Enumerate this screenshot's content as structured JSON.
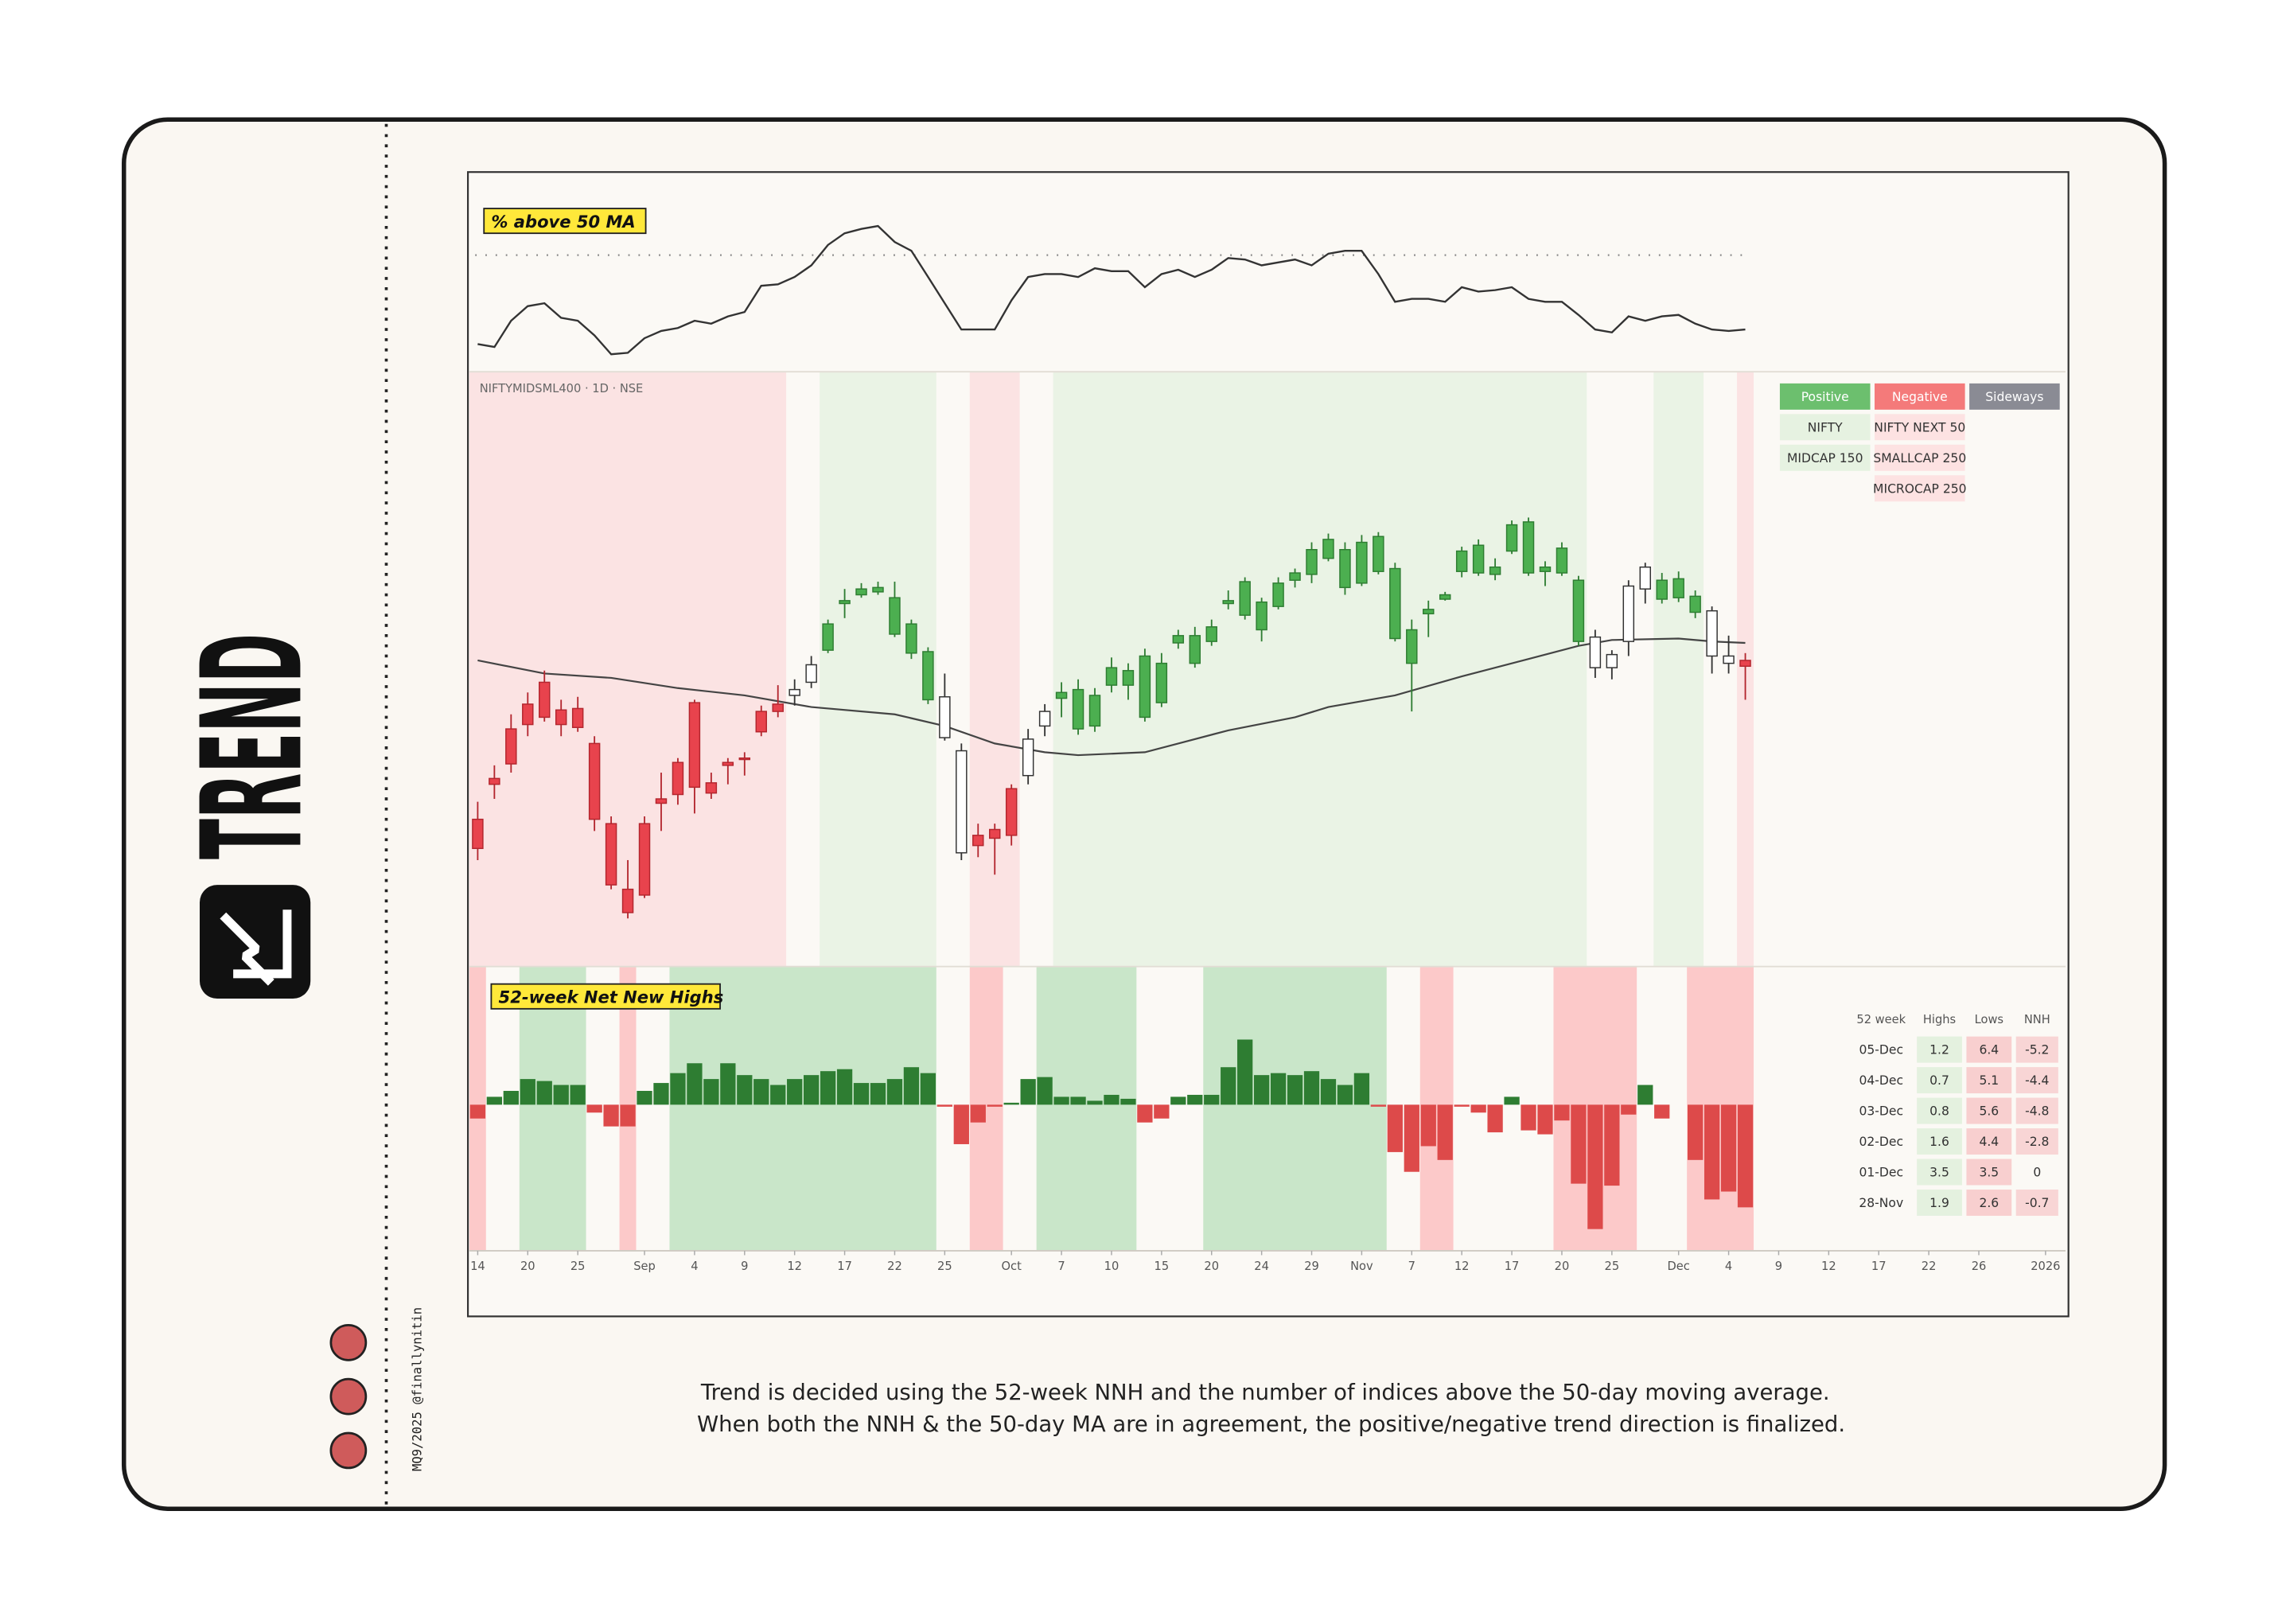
{
  "sidebar": {
    "title": "TREND",
    "credit": "MQ9/2025 @finallynitin"
  },
  "caption": [
    "Trend is decided using the 52-week NNH and the number of indices above the 50-day moving average.",
    "When both the NNH & the 50-day MA are in agreement, the positive/negative trend direction is finalized."
  ],
  "chart_data": [
    {
      "type": "line",
      "title": "% above 50 MA",
      "color": "#333333",
      "xlim": [
        -0.5,
        95.2
      ],
      "ylim": [
        0,
        137
      ],
      "reference_line": 80,
      "values": [
        19,
        17,
        35,
        45,
        47,
        37,
        35,
        25,
        12,
        13,
        23,
        28,
        30,
        35,
        33,
        38,
        41,
        59,
        60,
        65,
        73,
        87,
        95,
        98,
        100,
        89,
        83,
        65,
        47,
        29,
        29,
        29,
        49,
        65,
        67,
        67,
        65,
        71,
        69,
        69,
        58,
        67,
        70,
        65,
        70,
        78,
        77,
        73,
        75,
        77,
        73,
        81,
        83,
        83,
        67,
        48,
        50,
        50,
        48,
        58,
        55,
        56,
        58,
        50,
        48,
        48,
        39,
        29,
        27,
        38,
        35,
        38,
        39,
        33,
        29,
        28,
        29
      ]
    },
    {
      "type": "candlestick",
      "title": "NIFTYMIDSML400 · 1D · NSE",
      "xlim": [
        -0.5,
        95.2
      ],
      "ylim": [
        0,
        408
      ],
      "open": [
        81,
        125,
        139,
        166,
        171,
        166,
        164,
        101,
        56,
        37,
        49,
        112,
        118,
        123,
        119,
        138,
        142,
        161,
        175,
        186,
        195,
        217,
        249,
        255,
        257,
        228,
        215,
        183,
        157,
        78,
        83,
        88,
        90,
        131,
        165,
        184,
        163,
        165,
        193,
        193,
        171,
        181,
        222,
        208,
        223,
        249,
        241,
        231,
        247,
        265,
        269,
        280,
        260,
        263,
        271,
        225,
        208,
        242,
        252,
        271,
        270,
        269,
        285,
        270,
        271,
        270,
        223,
        205,
        205,
        223,
        259,
        252,
        253,
        243,
        213,
        208,
        206
      ],
      "high": [
        113,
        138,
        173,
        188,
        203,
        183,
        185,
        158,
        103,
        73,
        103,
        133,
        143,
        183,
        133,
        143,
        147,
        179,
        193,
        197,
        213,
        238,
        259,
        263,
        264,
        264,
        238,
        219,
        201,
        153,
        98,
        98,
        125,
        163,
        180,
        195,
        197,
        191,
        212,
        208,
        218,
        215,
        231,
        233,
        238,
        258,
        267,
        253,
        267,
        273,
        291,
        297,
        291,
        296,
        298,
        277,
        238,
        251,
        257,
        288,
        293,
        280,
        306,
        308,
        278,
        291,
        268,
        231,
        217,
        265,
        277,
        270,
        271,
        258,
        247,
        227,
        215
      ],
      "low": [
        73,
        115,
        133,
        158,
        168,
        158,
        161,
        93,
        53,
        33,
        47,
        93,
        111,
        105,
        115,
        125,
        131,
        158,
        171,
        179,
        191,
        215,
        239,
        253,
        255,
        226,
        211,
        180,
        155,
        73,
        75,
        63,
        83,
        125,
        158,
        171,
        159,
        161,
        188,
        183,
        168,
        178,
        218,
        205,
        220,
        245,
        238,
        223,
        245,
        260,
        263,
        278,
        255,
        261,
        269,
        223,
        175,
        226,
        251,
        267,
        268,
        265,
        283,
        268,
        261,
        268,
        220,
        198,
        197,
        213,
        249,
        249,
        250,
        239,
        201,
        201,
        183
      ],
      "close": [
        101,
        129,
        163,
        180,
        195,
        176,
        177,
        153,
        98,
        53,
        98,
        115,
        140,
        181,
        126,
        140,
        143,
        175,
        180,
        190,
        207,
        235,
        251,
        259,
        260,
        253,
        235,
        216,
        185,
        148,
        90,
        94,
        122,
        156,
        175,
        188,
        190,
        186,
        205,
        203,
        213,
        208,
        227,
        227,
        233,
        251,
        264,
        250,
        263,
        270,
        286,
        293,
        286,
        291,
        295,
        273,
        231,
        245,
        255,
        285,
        289,
        274,
        303,
        305,
        274,
        287,
        265,
        226,
        214,
        261,
        274,
        265,
        266,
        254,
        244,
        213,
        210
      ],
      "ma": {
        "color": "#444444",
        "x": [
          0,
          4,
          8,
          12,
          16,
          20,
          25,
          28,
          31,
          34,
          36,
          40,
          42,
          45,
          49,
          51,
          55,
          59,
          63,
          66,
          68,
          72,
          74,
          76
        ],
        "values": [
          210,
          201,
          198,
          191,
          186,
          178,
          173,
          165,
          153,
          147,
          145,
          147,
          153,
          162,
          171,
          178,
          186,
          199,
          211,
          220,
          224,
          225,
          223,
          222
        ]
      },
      "regions": [
        {
          "from": 0,
          "to": 18,
          "trend": "negative"
        },
        {
          "from": 19,
          "to": 20,
          "trend": "neutral"
        },
        {
          "from": 21,
          "to": 27,
          "trend": "positive"
        },
        {
          "from": 28,
          "to": 29,
          "trend": "neutral"
        },
        {
          "from": 30,
          "to": 32,
          "trend": "negative"
        },
        {
          "from": 33,
          "to": 34,
          "trend": "neutral"
        },
        {
          "from": 35,
          "to": 66,
          "trend": "positive"
        },
        {
          "from": 67,
          "to": 70,
          "trend": "neutral"
        },
        {
          "from": 71,
          "to": 73,
          "trend": "positive"
        },
        {
          "from": 74,
          "to": 75,
          "trend": "neutral"
        },
        {
          "from": 76,
          "to": 76,
          "trend": "negative"
        }
      ],
      "region_colors": {
        "positive": "#eaf3e5",
        "negative": "#fbe3e3",
        "neutral": "#fbf9f5"
      },
      "candle_fill": {
        "positive": "#4caf50",
        "negative": "#e8434d",
        "neutral": "#ffffff"
      },
      "candle_stroke": {
        "positive": "#2e7d32",
        "negative": "#b3262e",
        "neutral": "#333333"
      }
    },
    {
      "type": "bar",
      "title": "52-week Net New Highs",
      "xlim": [
        -0.5,
        95.2
      ],
      "ylim": [
        -7.4,
        7.0
      ],
      "values": [
        -0.7,
        0.4,
        0.7,
        1.3,
        1.2,
        1.0,
        1.0,
        -0.4,
        -1.1,
        -1.1,
        0.7,
        1.1,
        1.6,
        2.1,
        1.3,
        2.1,
        1.5,
        1.3,
        1.0,
        1.3,
        1.5,
        1.7,
        1.8,
        1.1,
        1.1,
        1.3,
        1.9,
        1.6,
        -0.1,
        -2.0,
        -0.9,
        -0.1,
        0.1,
        1.3,
        1.4,
        0.4,
        0.4,
        0.2,
        0.5,
        0.3,
        -0.9,
        -0.7,
        0.4,
        0.5,
        0.5,
        1.9,
        3.3,
        1.5,
        1.6,
        1.5,
        1.7,
        1.3,
        1.0,
        1.6,
        -0.1,
        -2.4,
        -3.4,
        -2.1,
        -2.8,
        -0.1,
        -0.4,
        -1.4,
        0.4,
        -1.3,
        -1.5,
        -0.8,
        -4.0,
        -6.3,
        -4.1,
        -0.5,
        1.0,
        -0.7,
        0,
        -2.8,
        -4.8,
        -4.4,
        -5.2
      ],
      "positive_color": "#2e7d32",
      "negative_color": "#dd4a4a",
      "regions": [
        {
          "from": 0,
          "to": 0,
          "trend": "negative"
        },
        {
          "from": 1,
          "to": 2,
          "trend": "neutral"
        },
        {
          "from": 3,
          "to": 6,
          "trend": "positive"
        },
        {
          "from": 7,
          "to": 8,
          "trend": "neutral"
        },
        {
          "from": 9,
          "to": 9,
          "trend": "negative"
        },
        {
          "from": 10,
          "to": 11,
          "trend": "neutral"
        },
        {
          "from": 12,
          "to": 27,
          "trend": "positive"
        },
        {
          "from": 28,
          "to": 29,
          "trend": "neutral"
        },
        {
          "from": 30,
          "to": 31,
          "trend": "negative"
        },
        {
          "from": 32,
          "to": 33,
          "trend": "neutral"
        },
        {
          "from": 34,
          "to": 39,
          "trend": "positive"
        },
        {
          "from": 40,
          "to": 43,
          "trend": "neutral"
        },
        {
          "from": 44,
          "to": 54,
          "trend": "positive"
        },
        {
          "from": 55,
          "to": 56,
          "trend": "neutral"
        },
        {
          "from": 57,
          "to": 58,
          "trend": "negative"
        },
        {
          "from": 59,
          "to": 64,
          "trend": "neutral"
        },
        {
          "from": 65,
          "to": 69,
          "trend": "negative"
        },
        {
          "from": 70,
          "to": 72,
          "trend": "neutral"
        },
        {
          "from": 73,
          "to": 76,
          "trend": "negative"
        }
      ],
      "region_colors": {
        "positive": "#c9e6c9",
        "negative": "#fcc9c9",
        "neutral": "#fbf9f5"
      },
      "xticks": [
        {
          "value": 0,
          "label": "14"
        },
        {
          "value": 3,
          "label": "20"
        },
        {
          "value": 6,
          "label": "25"
        },
        {
          "value": 10,
          "label": "Sep"
        },
        {
          "value": 13,
          "label": "4"
        },
        {
          "value": 16,
          "label": "9"
        },
        {
          "value": 19,
          "label": "12"
        },
        {
          "value": 22,
          "label": "17"
        },
        {
          "value": 25,
          "label": "22"
        },
        {
          "value": 28,
          "label": "25"
        },
        {
          "value": 32,
          "label": "Oct"
        },
        {
          "value": 35,
          "label": "7"
        },
        {
          "value": 38,
          "label": "10"
        },
        {
          "value": 41,
          "label": "15"
        },
        {
          "value": 44,
          "label": "20"
        },
        {
          "value": 47,
          "label": "24"
        },
        {
          "value": 50,
          "label": "29"
        },
        {
          "value": 53,
          "label": "Nov"
        },
        {
          "value": 56,
          "label": "7"
        },
        {
          "value": 59,
          "label": "12"
        },
        {
          "value": 62,
          "label": "17"
        },
        {
          "value": 65,
          "label": "20"
        },
        {
          "value": 68,
          "label": "25"
        },
        {
          "value": 72,
          "label": "Dec"
        },
        {
          "value": 75,
          "label": "4"
        },
        {
          "value": 78,
          "label": "9"
        },
        {
          "value": 81,
          "label": "12"
        },
        {
          "value": 84,
          "label": "17"
        },
        {
          "value": 87,
          "label": "22"
        },
        {
          "value": 90,
          "label": "26"
        },
        {
          "value": 94,
          "label": "2026"
        }
      ]
    }
  ],
  "trend_table": {
    "headers": [
      "Positive",
      "Negative",
      "Sideways"
    ],
    "header_colors": [
      "#6cbf6e",
      "#f47a7a",
      "#8a8b94"
    ],
    "cell_colors": [
      "#e6f2e1",
      "#fde2e2",
      "#ececef"
    ],
    "rows": [
      [
        "NIFTY",
        "NIFTY NEXT 50",
        null
      ],
      [
        "MIDCAP 150",
        "SMALLCAP 250",
        null
      ],
      [
        null,
        "MICROCAP 250",
        null
      ]
    ]
  },
  "nnh_table": {
    "headers": [
      "52 week",
      "Highs",
      "Lows",
      "NNH"
    ],
    "highs_color": "#e4f1df",
    "lows_color": "#f8cfcf",
    "negative_color": "#f8d5d5",
    "rows": [
      [
        "05-Dec",
        1.2,
        6.4,
        -5.2
      ],
      [
        "04-Dec",
        0.7,
        5.1,
        -4.4
      ],
      [
        "03-Dec",
        0.8,
        5.6,
        -4.8
      ],
      [
        "02-Dec",
        1.6,
        4.4,
        -2.8
      ],
      [
        "01-Dec",
        3.5,
        3.5,
        0
      ],
      [
        "28-Nov",
        1.9,
        2.6,
        -0.7
      ]
    ]
  }
}
